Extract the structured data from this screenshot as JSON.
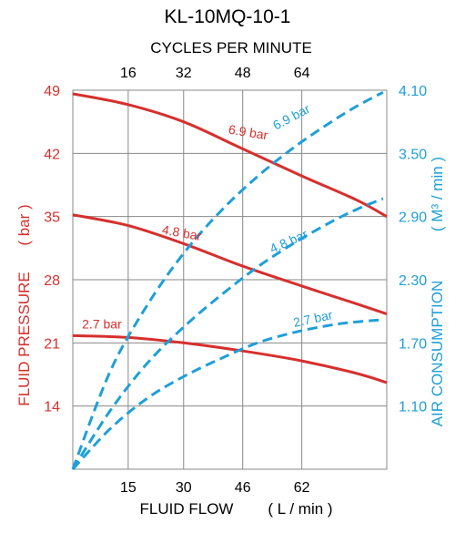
{
  "chart_data": {
    "type": "line",
    "title": "KL-10MQ-10-1",
    "xlabel": "FLUID FLOW",
    "xlabel_unit": "( L / min )",
    "x2label": "CYCLES PER MINUTE",
    "ylabel": "FLUID PRESSURE",
    "ylabel_unit": "( bar )",
    "y2label": "AIR CONSUMPTION",
    "y2label_unit": "( M³ / min )",
    "x_ticks": [
      "15",
      "30",
      "46",
      "62"
    ],
    "x2_ticks": [
      "16",
      "32",
      "48",
      "64"
    ],
    "y_ticks": [
      "14",
      "21",
      "28",
      "35",
      "42",
      "49"
    ],
    "y2_ticks": [
      "1.10",
      "1.70",
      "2.30",
      "2.90",
      "3.50",
      "4.10"
    ],
    "xlim": [
      0,
      85
    ],
    "ylim": [
      7,
      49
    ],
    "y2lim": [
      0.5,
      4.1
    ],
    "grid": true,
    "colors": {
      "pressure": "#d6302e",
      "air": "#1f9fd8",
      "grid": "#888888"
    },
    "series": [
      {
        "name": "6.9 bar",
        "kind": "pressure",
        "axis": "left",
        "x": [
          0,
          15,
          30,
          46,
          62,
          77,
          85
        ],
        "y": [
          48.6,
          47.4,
          45.5,
          42.5,
          39.5,
          36.8,
          35.0
        ],
        "label_x": 42,
        "label_y": 44.2,
        "label_rot": 9
      },
      {
        "name": "4.8 bar",
        "kind": "pressure",
        "axis": "left",
        "x": [
          0,
          15,
          30,
          46,
          62,
          77,
          85
        ],
        "y": [
          35.2,
          34.0,
          32.0,
          29.5,
          27.3,
          25.3,
          24.2
        ],
        "label_x": 24,
        "label_y": 33.1,
        "label_rot": 10
      },
      {
        "name": "2.7 bar",
        "kind": "pressure",
        "axis": "left",
        "x": [
          0,
          15,
          30,
          46,
          62,
          77,
          85
        ],
        "y": [
          21.8,
          21.6,
          21.0,
          20.1,
          19.0,
          17.6,
          16.6
        ],
        "label_x": 2.5,
        "label_y": 22.6,
        "label_rot": 0
      },
      {
        "name": "6.9 bar",
        "kind": "air",
        "axis": "right",
        "x": [
          0,
          10,
          20,
          30,
          40,
          50,
          60,
          70,
          77,
          84
        ],
        "y": [
          0.5,
          1.42,
          2.05,
          2.55,
          2.95,
          3.28,
          3.56,
          3.8,
          3.95,
          4.08
        ],
        "label_x": 55,
        "label_y": 3.72,
        "label_rot": -28
      },
      {
        "name": "4.8 bar",
        "kind": "air",
        "axis": "right",
        "x": [
          0,
          10,
          20,
          30,
          40,
          50,
          60,
          70,
          77,
          84
        ],
        "y": [
          0.5,
          1.05,
          1.5,
          1.85,
          2.15,
          2.42,
          2.65,
          2.85,
          2.97,
          3.07
        ],
        "label_x": 54,
        "label_y": 2.55,
        "label_rot": -24
      },
      {
        "name": "2.7 bar",
        "kind": "air",
        "axis": "right",
        "x": [
          0,
          10,
          20,
          30,
          40,
          50,
          60,
          70,
          77,
          84
        ],
        "y": [
          0.5,
          0.88,
          1.17,
          1.38,
          1.55,
          1.7,
          1.8,
          1.87,
          1.9,
          1.92
        ],
        "label_x": 60,
        "label_y": 1.85,
        "label_rot": -12
      }
    ]
  }
}
